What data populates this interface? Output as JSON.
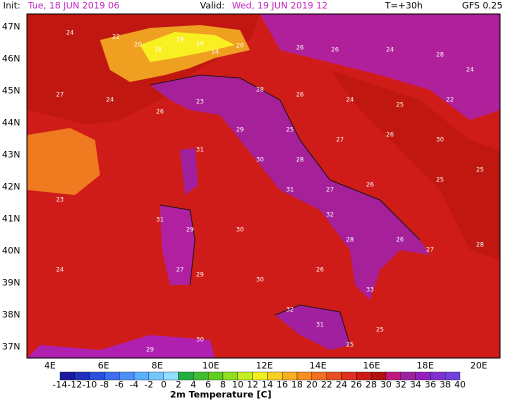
{
  "header": {
    "init_label": "Init:",
    "init_value": "Tue, 18 JUN 2019  06",
    "valid_label": "Valid:",
    "valid_value": "Wed, 19 JUN 2019  12",
    "lead": "T=+30h",
    "model": "GFS 0.25"
  },
  "map": {
    "lat_labels": [
      "47N",
      "46N",
      "45N",
      "44N",
      "43N",
      "42N",
      "41N",
      "40N",
      "39N",
      "38N",
      "37N"
    ],
    "lon_labels": [
      "4E",
      "6E",
      "8E",
      "10E",
      "12E",
      "14E",
      "16E",
      "18E",
      "20E"
    ],
    "stations": [
      24,
      22,
      20,
      18,
      19,
      16,
      14,
      20,
      26,
      26,
      24,
      28,
      24,
      27,
      24,
      26,
      23,
      28,
      26,
      24,
      25,
      22,
      29,
      25,
      27,
      26,
      30,
      31,
      30,
      28,
      31,
      27,
      26,
      25,
      25,
      23,
      31,
      29,
      30,
      32,
      28,
      26,
      27,
      28,
      24,
      27,
      29,
      30,
      26,
      33,
      32,
      31,
      25,
      30,
      29,
      25
    ]
  },
  "colorbar": {
    "labels": [
      -14,
      -12,
      -10,
      -8,
      -6,
      -4,
      -2,
      0,
      2,
      4,
      6,
      8,
      10,
      12,
      14,
      16,
      18,
      20,
      22,
      24,
      26,
      28,
      30,
      32,
      34,
      36,
      38,
      40
    ],
    "colors": [
      "#1a1a9e",
      "#1f30c0",
      "#2a50e0",
      "#3a70f0",
      "#4a90f8",
      "#5ab0ff",
      "#70c8ff",
      "#90e0ff",
      "#20b040",
      "#40c030",
      "#60d020",
      "#90e020",
      "#c0f020",
      "#f0f020",
      "#f8d020",
      "#f8b020",
      "#f89020",
      "#f07020",
      "#e85020",
      "#e03020",
      "#d01818",
      "#b01010",
      "#c01880",
      "#a020a0",
      "#9020c0",
      "#8030d0",
      "#7040e0"
    ],
    "title": "2m Temperature [C]"
  }
}
